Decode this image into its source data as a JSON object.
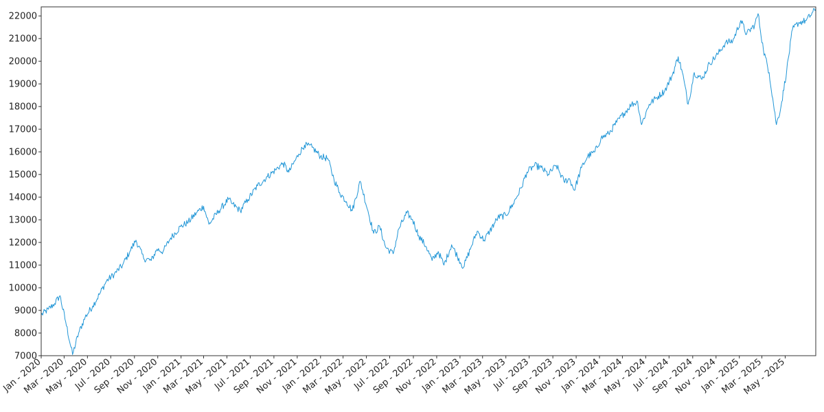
{
  "chart_data": {
    "type": "line",
    "title": "",
    "xlabel": "",
    "ylabel": "",
    "ylim": [
      7000,
      22400
    ],
    "xlim": [
      "2020-01-01",
      "2025-07-20"
    ],
    "grid": false,
    "line_color": "#1f95d6",
    "y_ticks": [
      7000,
      8000,
      9000,
      10000,
      11000,
      12000,
      13000,
      14000,
      15000,
      16000,
      17000,
      18000,
      19000,
      20000,
      21000,
      22000
    ],
    "x_ticks": [
      {
        "date": "2020-01-01",
        "label": "Jan - 2020"
      },
      {
        "date": "2020-03-01",
        "label": "Mar - 2020"
      },
      {
        "date": "2020-05-01",
        "label": "May - 2020"
      },
      {
        "date": "2020-07-01",
        "label": "Jul - 2020"
      },
      {
        "date": "2020-09-01",
        "label": "Sep - 2020"
      },
      {
        "date": "2020-11-01",
        "label": "Nov - 2020"
      },
      {
        "date": "2021-01-01",
        "label": "Jan - 2021"
      },
      {
        "date": "2021-03-01",
        "label": "Mar - 2021"
      },
      {
        "date": "2021-05-01",
        "label": "May - 2021"
      },
      {
        "date": "2021-07-01",
        "label": "Jul - 2021"
      },
      {
        "date": "2021-09-01",
        "label": "Sep - 2021"
      },
      {
        "date": "2021-11-01",
        "label": "Nov - 2021"
      },
      {
        "date": "2022-01-01",
        "label": "Jan - 2022"
      },
      {
        "date": "2022-03-01",
        "label": "Mar - 2022"
      },
      {
        "date": "2022-05-01",
        "label": "May - 2022"
      },
      {
        "date": "2022-07-01",
        "label": "Jul - 2022"
      },
      {
        "date": "2022-09-01",
        "label": "Sep - 2022"
      },
      {
        "date": "2022-11-01",
        "label": "Nov - 2022"
      },
      {
        "date": "2023-01-01",
        "label": "Jan - 2023"
      },
      {
        "date": "2023-03-01",
        "label": "Mar - 2023"
      },
      {
        "date": "2023-05-01",
        "label": "May - 2023"
      },
      {
        "date": "2023-07-01",
        "label": "Jul - 2023"
      },
      {
        "date": "2023-09-01",
        "label": "Sep - 2023"
      },
      {
        "date": "2023-11-01",
        "label": "Nov - 2023"
      },
      {
        "date": "2024-01-01",
        "label": "Jan - 2024"
      },
      {
        "date": "2024-03-01",
        "label": "Mar - 2024"
      },
      {
        "date": "2024-05-01",
        "label": "May - 2024"
      },
      {
        "date": "2024-07-01",
        "label": "Jul - 2024"
      },
      {
        "date": "2024-09-01",
        "label": "Sep - 2024"
      },
      {
        "date": "2024-11-01",
        "label": "Nov - 2024"
      },
      {
        "date": "2025-01-01",
        "label": "Jan - 2025"
      },
      {
        "date": "2025-03-01",
        "label": "Mar - 2025"
      },
      {
        "date": "2025-05-01",
        "label": "May - 2025"
      }
    ],
    "series": [
      {
        "x": [
          "2020-01-01",
          "2020-01-20",
          "2020-02-05",
          "2020-02-19",
          "2020-03-05",
          "2020-03-23",
          "2020-04-08",
          "2020-04-25",
          "2020-05-15",
          "2020-06-01",
          "2020-06-20",
          "2020-07-10",
          "2020-08-01",
          "2020-08-20",
          "2020-09-05",
          "2020-09-25",
          "2020-10-15",
          "2020-10-30",
          "2020-11-15",
          "2020-12-05",
          "2020-12-31",
          "2021-01-20",
          "2021-02-10",
          "2021-03-01",
          "2021-03-15",
          "2021-04-10",
          "2021-05-05",
          "2021-05-15",
          "2021-06-05",
          "2021-06-25",
          "2021-07-20",
          "2021-08-15",
          "2021-09-05",
          "2021-09-25",
          "2021-10-10",
          "2021-11-05",
          "2021-11-20",
          "2021-12-10",
          "2022-01-01",
          "2022-01-20",
          "2022-02-05",
          "2022-02-20",
          "2022-03-10",
          "2022-03-25",
          "2022-04-15",
          "2022-05-05",
          "2022-05-20",
          "2022-06-05",
          "2022-06-20",
          "2022-07-10",
          "2022-07-25",
          "2022-08-15",
          "2022-08-30",
          "2022-09-15",
          "2022-10-05",
          "2022-10-20",
          "2022-11-05",
          "2022-11-20",
          "2022-12-10",
          "2022-12-25",
          "2023-01-10",
          "2023-01-30",
          "2023-02-15",
          "2023-03-05",
          "2023-03-20",
          "2023-04-10",
          "2023-05-01",
          "2023-05-20",
          "2023-06-10",
          "2023-06-25",
          "2023-07-15",
          "2023-08-01",
          "2023-08-20",
          "2023-09-10",
          "2023-09-30",
          "2023-10-15",
          "2023-10-27",
          "2023-11-15",
          "2023-12-01",
          "2023-12-20",
          "2024-01-05",
          "2024-01-25",
          "2024-02-15",
          "2024-03-05",
          "2024-03-25",
          "2024-04-10",
          "2024-04-20",
          "2024-05-10",
          "2024-05-30",
          "2024-06-20",
          "2024-07-10",
          "2024-07-25",
          "2024-08-05",
          "2024-08-20",
          "2024-09-05",
          "2024-09-25",
          "2024-10-15",
          "2024-11-05",
          "2024-11-25",
          "2024-12-15",
          "2025-01-05",
          "2025-01-20",
          "2025-02-10",
          "2025-02-19",
          "2025-03-05",
          "2025-03-20",
          "2025-04-08",
          "2025-04-20",
          "2025-05-05",
          "2025-05-20",
          "2025-06-05",
          "2025-06-25",
          "2025-07-20"
        ],
        "y": [
          8800,
          9050,
          9300,
          9650,
          8500,
          7050,
          8000,
          8700,
          9200,
          9700,
          10300,
          10600,
          11000,
          11600,
          12100,
          11300,
          11200,
          11700,
          11600,
          12200,
          12700,
          12900,
          13300,
          13600,
          12800,
          13400,
          13900,
          13700,
          13400,
          13900,
          14500,
          14900,
          15200,
          15500,
          15100,
          15900,
          16300,
          16200,
          15800,
          15700,
          14800,
          14200,
          13800,
          13400,
          14700,
          13400,
          12400,
          12700,
          11800,
          11500,
          12600,
          13300,
          13000,
          12300,
          11800,
          11200,
          11600,
          11000,
          11900,
          11400,
          10900,
          11800,
          12500,
          12100,
          12500,
          13100,
          13200,
          13700,
          14400,
          15100,
          15400,
          15300,
          15000,
          15400,
          14700,
          14800,
          14300,
          15300,
          15800,
          16000,
          16600,
          16800,
          17300,
          17700,
          18100,
          18200,
          17200,
          18100,
          18400,
          18700,
          19400,
          20200,
          19500,
          18100,
          19500,
          19200,
          19900,
          20300,
          20800,
          20900,
          21800,
          21200,
          21600,
          22100,
          20500,
          19500,
          17200,
          18000,
          19600,
          21400,
          21700,
          21800,
          22300
        ]
      }
    ]
  }
}
